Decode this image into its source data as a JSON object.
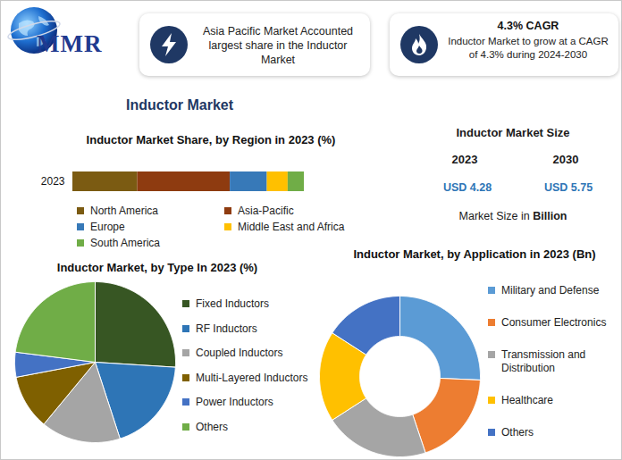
{
  "header": {
    "logo": "MMR",
    "box1": "Asia Pacific Market Accounted largest share in the Inductor Market",
    "box2_title": "4.3% CAGR",
    "box2_text": "Inductor Market to grow at a CAGR of 4.3% during 2024-2030"
  },
  "title": "Inductor Market",
  "market_size": {
    "title": "Inductor Market Size",
    "years": [
      "2023",
      "2030"
    ],
    "values": [
      "USD 4.28",
      "USD 5.75"
    ],
    "note": "Market Size in",
    "note_bold": "Billion"
  },
  "chart_data": [
    {
      "type": "bar",
      "orientation": "horizontal",
      "stacked": true,
      "title": "Inductor Market Share, by Region in 2023 (%)",
      "categories": [
        "2023"
      ],
      "series": [
        {
          "name": "North America",
          "color": "#7b5b12",
          "values": [
            28
          ]
        },
        {
          "name": "Asia-Pacific",
          "color": "#8e3b10",
          "values": [
            40
          ]
        },
        {
          "name": "Europe",
          "color": "#3779b8",
          "values": [
            16
          ]
        },
        {
          "name": "Middle East and Africa",
          "color": "#ffc000",
          "values": [
            9
          ]
        },
        {
          "name": "South America",
          "color": "#70ad47",
          "values": [
            7
          ]
        }
      ],
      "xlim": [
        0,
        100
      ],
      "tick_labels": "y",
      "legend": "bottom"
    },
    {
      "type": "pie",
      "title": "Inductor Market, by Type In 2023 (%)",
      "categories": [
        "Fixed Inductors",
        "RF Inductors",
        "Coupled Inductors",
        "Multi-Layered Inductors",
        "Power Inductors",
        "Others"
      ],
      "values": [
        26,
        19,
        16,
        11,
        5,
        23
      ],
      "colors": [
        "#375623",
        "#2e75b6",
        "#a5a5a5",
        "#7f6000",
        "#4472c4",
        "#70ad47"
      ],
      "legend": "right"
    },
    {
      "type": "donut",
      "title": "Inductor Market, by Application in 2023 (Bn)",
      "categories": [
        "Military and Defense",
        "Consumer Electronics",
        "Transmission and Distribution",
        "Healthcare",
        "Others"
      ],
      "values": [
        1.1,
        0.82,
        0.9,
        0.78,
        0.68
      ],
      "colors": [
        "#5b9bd5",
        "#ed7d31",
        "#a5a5a5",
        "#ffc000",
        "#4472c4"
      ],
      "legend": "right"
    }
  ]
}
